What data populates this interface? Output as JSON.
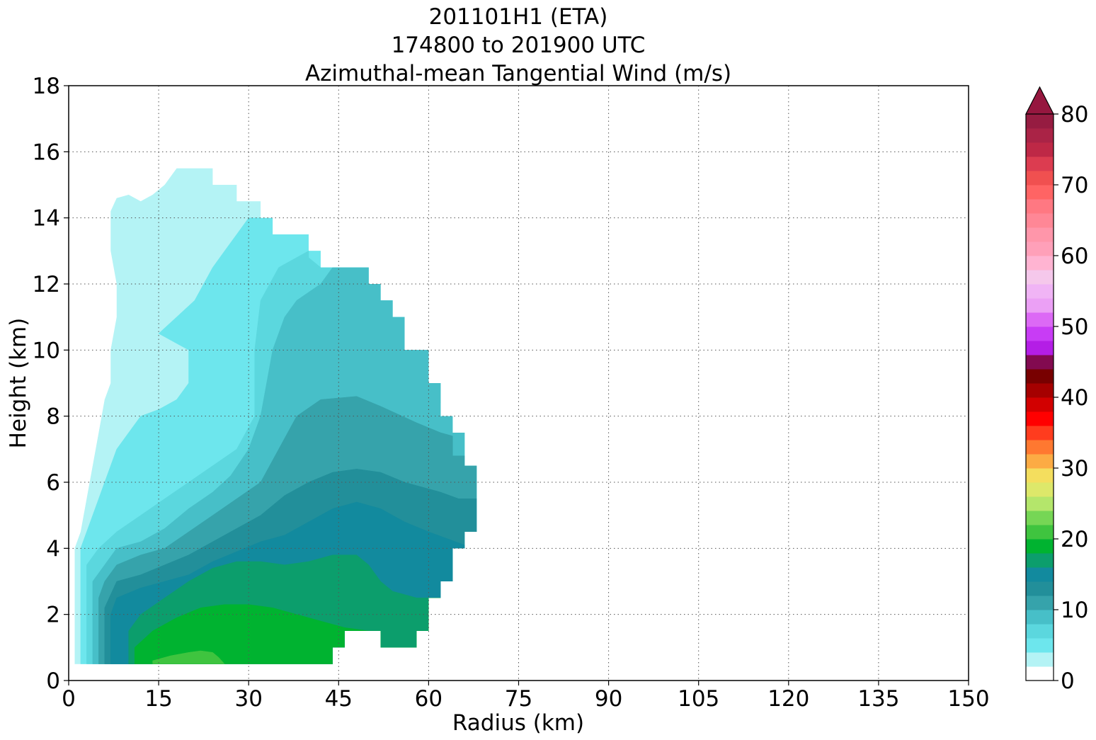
{
  "chart_data": {
    "type": "contourf",
    "title_lines": [
      "201101H1 (ETA)",
      "174800 to 201900 UTC",
      "Azimuthal-mean Tangential Wind (m/s)"
    ],
    "xlabel": "Radius (km)",
    "ylabel": "Height (km)",
    "xlim": [
      0,
      150
    ],
    "ylim": [
      0,
      18
    ],
    "xticks": [
      0,
      15,
      30,
      45,
      60,
      75,
      90,
      105,
      120,
      135,
      150
    ],
    "yticks": [
      0,
      2,
      4,
      6,
      8,
      10,
      12,
      14,
      16,
      18
    ],
    "grid": true,
    "colorbar": {
      "min": 0,
      "max": 80,
      "ticks": [
        0,
        10,
        20,
        30,
        40,
        50,
        60,
        70,
        80
      ],
      "extend": "max",
      "step": 2,
      "colors": [
        "#ffffff",
        "#b4f3f5",
        "#6de6ed",
        "#5bd7de",
        "#47bfc8",
        "#36a3ab",
        "#228f9a",
        "#128a9e",
        "#0c9e6c",
        "#00b330",
        "#3fc43f",
        "#76d655",
        "#b4e66b",
        "#dde86a",
        "#f4de5e",
        "#fcab44",
        "#ff7830",
        "#ff3c1e",
        "#ff0000",
        "#d20000",
        "#a50000",
        "#780000",
        "#820a50",
        "#b41ee6",
        "#c83cf5",
        "#dc69f5",
        "#eba0f5",
        "#f0b4f5",
        "#f5c8eb",
        "#ffb4d2",
        "#ffa0b9",
        "#ff96aa",
        "#ff8796",
        "#ff7882",
        "#ff6464",
        "#f05050",
        "#dc3c50",
        "#be2846",
        "#aa2346",
        "#961c41"
      ],
      "extend_color": "#96173f"
    },
    "levels": [
      {
        "value": 2,
        "color": "#b4f3f5",
        "polygon": [
          [
            1,
            0.5
          ],
          [
            1,
            4
          ],
          [
            2,
            4.5
          ],
          [
            4,
            6.5
          ],
          [
            5,
            7.5
          ],
          [
            6,
            8.5
          ],
          [
            7,
            9
          ],
          [
            7,
            10
          ],
          [
            8,
            11
          ],
          [
            8,
            12
          ],
          [
            7,
            13
          ],
          [
            7,
            14.2
          ],
          [
            8,
            14.6
          ],
          [
            10,
            14.7
          ],
          [
            12,
            14.5
          ],
          [
            14,
            14.7
          ],
          [
            16,
            15
          ],
          [
            18,
            15.5
          ],
          [
            24,
            15.5
          ],
          [
            24,
            15
          ],
          [
            28,
            15
          ],
          [
            28,
            14.5
          ],
          [
            32,
            14.5
          ],
          [
            32,
            14
          ],
          [
            150,
            14
          ],
          [
            150,
            0.5
          ]
        ]
      },
      {
        "value": 4,
        "color": "#6de6ed",
        "polygon": [
          [
            2,
            0.5
          ],
          [
            2,
            4
          ],
          [
            3,
            4.5
          ],
          [
            5,
            5.5
          ],
          [
            6,
            6
          ],
          [
            8,
            7
          ],
          [
            10,
            7.5
          ],
          [
            12,
            8
          ],
          [
            15,
            8.2
          ],
          [
            18,
            8.5
          ],
          [
            20,
            9
          ],
          [
            20,
            10
          ],
          [
            17,
            10.3
          ],
          [
            15,
            10.5
          ],
          [
            18,
            11
          ],
          [
            21,
            11.5
          ],
          [
            24,
            12.5
          ],
          [
            26,
            13
          ],
          [
            28,
            13.5
          ],
          [
            30,
            14
          ],
          [
            34,
            14
          ],
          [
            34,
            13.5
          ],
          [
            40,
            13.5
          ],
          [
            40,
            13
          ],
          [
            150,
            13
          ],
          [
            150,
            0.5
          ]
        ]
      },
      {
        "value": 6,
        "color": "#5bd7de",
        "polygon": [
          [
            3,
            0.5
          ],
          [
            3,
            3.5
          ],
          [
            5,
            4
          ],
          [
            8,
            4.5
          ],
          [
            12,
            5
          ],
          [
            16,
            5.5
          ],
          [
            20,
            6
          ],
          [
            24,
            6.5
          ],
          [
            28,
            7
          ],
          [
            31,
            8
          ],
          [
            31,
            10
          ],
          [
            32,
            11.5
          ],
          [
            35,
            12.5
          ],
          [
            40,
            13
          ],
          [
            40,
            12.8
          ],
          [
            42,
            12.5
          ],
          [
            150,
            12.5
          ],
          [
            150,
            0.5
          ]
        ]
      },
      {
        "value": 8,
        "color": "#47bfc8",
        "polygon": [
          [
            4,
            0.5
          ],
          [
            4,
            3
          ],
          [
            6,
            3.5
          ],
          [
            8,
            4
          ],
          [
            12,
            4.2
          ],
          [
            16,
            4.6
          ],
          [
            20,
            5.2
          ],
          [
            24,
            5.7
          ],
          [
            27,
            6.2
          ],
          [
            30,
            7
          ],
          [
            32,
            8
          ],
          [
            33,
            9
          ],
          [
            34,
            10
          ],
          [
            36,
            11
          ],
          [
            38,
            11.5
          ],
          [
            42,
            12
          ],
          [
            44,
            12.5
          ],
          [
            50,
            12.5
          ],
          [
            50,
            12
          ],
          [
            52,
            12
          ],
          [
            52,
            11.5
          ],
          [
            54,
            11.5
          ],
          [
            54,
            11
          ],
          [
            56,
            11
          ],
          [
            56,
            10
          ],
          [
            60,
            10
          ],
          [
            60,
            9
          ],
          [
            62,
            9
          ],
          [
            62,
            8.4
          ],
          [
            150,
            8.4
          ],
          [
            150,
            0.5
          ]
        ]
      },
      {
        "value": 10,
        "color": "#36a3ab",
        "polygon": [
          [
            5,
            0.5
          ],
          [
            5,
            2.5
          ],
          [
            6,
            3
          ],
          [
            8,
            3.5
          ],
          [
            12,
            3.8
          ],
          [
            16,
            4
          ],
          [
            20,
            4.5
          ],
          [
            24,
            5
          ],
          [
            28,
            5.5
          ],
          [
            32,
            6
          ],
          [
            35,
            7
          ],
          [
            38,
            8
          ],
          [
            42,
            8.5
          ],
          [
            48,
            8.6
          ],
          [
            52,
            8.3
          ],
          [
            58,
            7.8
          ],
          [
            62,
            7.5
          ],
          [
            62,
            7.5
          ],
          [
            64,
            7.4
          ],
          [
            64,
            6.8
          ],
          [
            66,
            6.8
          ],
          [
            66,
            6.5
          ],
          [
            150,
            6.5
          ],
          [
            150,
            0.5
          ]
        ]
      },
      {
        "value": 12,
        "color": "#228f9a",
        "polygon": [
          [
            6,
            0.5
          ],
          [
            6,
            2.2
          ],
          [
            8,
            3
          ],
          [
            12,
            3.2
          ],
          [
            16,
            3.5
          ],
          [
            20,
            3.8
          ],
          [
            24,
            4.2
          ],
          [
            28,
            4.6
          ],
          [
            32,
            5
          ],
          [
            36,
            5.6
          ],
          [
            40,
            6
          ],
          [
            44,
            6.3
          ],
          [
            48,
            6.4
          ],
          [
            52,
            6.3
          ],
          [
            56,
            6
          ],
          [
            62,
            5.7
          ],
          [
            65,
            5.5
          ],
          [
            68,
            5.5
          ],
          [
            68,
            4.5
          ],
          [
            66,
            4.5
          ],
          [
            150,
            4.5
          ],
          [
            150,
            0.5
          ]
        ]
      },
      {
        "value": 14,
        "color": "#128a9e",
        "polygon": [
          [
            7,
            0.5
          ],
          [
            7,
            2
          ],
          [
            8,
            2.5
          ],
          [
            12,
            2.8
          ],
          [
            16,
            3
          ],
          [
            20,
            3.2
          ],
          [
            24,
            3.6
          ],
          [
            28,
            3.9
          ],
          [
            32,
            4.2
          ],
          [
            36,
            4.4
          ],
          [
            40,
            4.8
          ],
          [
            44,
            5.2
          ],
          [
            48,
            5.4
          ],
          [
            52,
            5.2
          ],
          [
            56,
            4.8
          ],
          [
            60,
            4.5
          ],
          [
            66,
            4.1
          ],
          [
            66,
            3.9
          ],
          [
            64,
            3.9
          ],
          [
            64,
            3
          ],
          [
            62,
            3
          ],
          [
            150,
            3
          ],
          [
            150,
            0.5
          ]
        ]
      },
      {
        "value": 16,
        "color": "#0c9e6c",
        "polygon": [
          [
            10,
            0.5
          ],
          [
            10,
            1.5
          ],
          [
            12,
            2
          ],
          [
            16,
            2.5
          ],
          [
            20,
            3
          ],
          [
            24,
            3.4
          ],
          [
            28,
            3.6
          ],
          [
            32,
            3.6
          ],
          [
            36,
            3.5
          ],
          [
            40,
            3.6
          ],
          [
            44,
            3.8
          ],
          [
            48,
            3.8
          ],
          [
            50,
            3.5
          ],
          [
            52,
            3
          ],
          [
            54,
            2.7
          ],
          [
            58,
            2.5
          ],
          [
            62,
            2.5
          ],
          [
            62,
            2.5
          ],
          [
            150,
            2.5
          ],
          [
            150,
            0.5
          ]
        ]
      },
      {
        "value": 18,
        "color": "#00b330",
        "polygon": [
          [
            11,
            0.5
          ],
          [
            11,
            1
          ],
          [
            14,
            1.5
          ],
          [
            18,
            1.9
          ],
          [
            22,
            2.2
          ],
          [
            26,
            2.3
          ],
          [
            30,
            2.3
          ],
          [
            34,
            2.2
          ],
          [
            38,
            2
          ],
          [
            42,
            1.8
          ],
          [
            46,
            1.6
          ],
          [
            50,
            1.5
          ],
          [
            52,
            1.5
          ],
          [
            52,
            1
          ],
          [
            58,
            1
          ],
          [
            58,
            1.5
          ],
          [
            60,
            1.5
          ],
          [
            60,
            2
          ],
          [
            60,
            2.5
          ],
          [
            150,
            2.5
          ],
          [
            150,
            0.5
          ]
        ]
      },
      {
        "value": 20,
        "color": "#3fc43f",
        "polygon": [
          [
            14,
            0.5
          ],
          [
            14,
            0.6
          ],
          [
            17,
            0.75
          ],
          [
            20,
            0.85
          ],
          [
            22,
            0.9
          ],
          [
            24,
            0.85
          ],
          [
            25,
            0.7
          ],
          [
            26,
            0.5
          ]
        ]
      }
    ],
    "data_mask": [
      [
        1,
        0.5
      ],
      [
        1,
        4
      ],
      [
        2,
        4.5
      ],
      [
        4,
        6.5
      ],
      [
        5,
        7.5
      ],
      [
        6,
        8.5
      ],
      [
        7,
        9
      ],
      [
        7,
        10
      ],
      [
        8,
        11
      ],
      [
        8,
        12
      ],
      [
        7,
        13
      ],
      [
        7,
        14.2
      ],
      [
        8,
        14.6
      ],
      [
        10,
        14.7
      ],
      [
        12,
        14.5
      ],
      [
        14,
        14.7
      ],
      [
        16,
        15
      ],
      [
        18,
        15.5
      ],
      [
        24,
        15.5
      ],
      [
        24,
        15
      ],
      [
        28,
        15
      ],
      [
        28,
        14.5
      ],
      [
        32,
        14.5
      ],
      [
        32,
        14
      ],
      [
        34,
        14
      ],
      [
        34,
        13.5
      ],
      [
        40,
        13.5
      ],
      [
        40,
        13
      ],
      [
        42,
        13
      ],
      [
        42,
        12.5
      ],
      [
        50,
        12.5
      ],
      [
        50,
        12
      ],
      [
        52,
        12
      ],
      [
        52,
        11.5
      ],
      [
        54,
        11.5
      ],
      [
        54,
        11
      ],
      [
        56,
        11
      ],
      [
        56,
        10
      ],
      [
        60,
        10
      ],
      [
        60,
        9
      ],
      [
        62,
        9
      ],
      [
        62,
        8
      ],
      [
        64,
        8
      ],
      [
        64,
        7.5
      ],
      [
        66,
        7.5
      ],
      [
        66,
        6.5
      ],
      [
        68,
        6.5
      ],
      [
        68,
        4.5
      ],
      [
        66,
        4.5
      ],
      [
        66,
        4
      ],
      [
        64,
        4
      ],
      [
        64,
        3
      ],
      [
        62,
        3
      ],
      [
        62,
        2.5
      ],
      [
        60,
        2.5
      ],
      [
        60,
        1.5
      ],
      [
        58,
        1.5
      ],
      [
        58,
        1
      ],
      [
        52,
        1
      ],
      [
        52,
        1.5
      ],
      [
        46,
        1.5
      ],
      [
        46,
        1
      ],
      [
        44,
        1
      ],
      [
        44,
        0.5
      ]
    ]
  }
}
